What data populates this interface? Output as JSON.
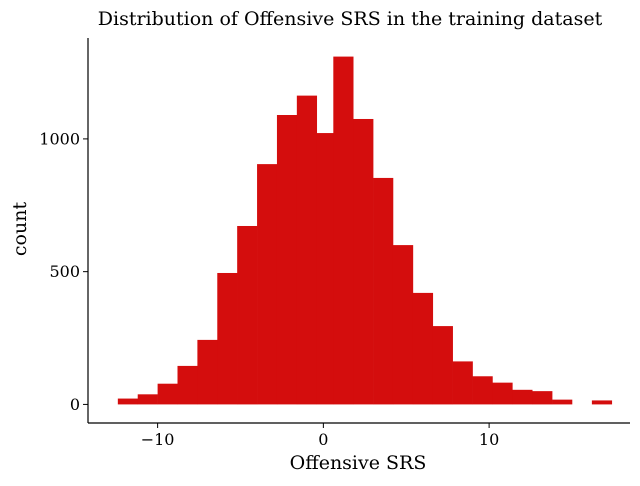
{
  "chart_data": {
    "type": "bar",
    "title": "Distribution of Offensive SRS in the training dataset",
    "xlabel": "Offensive SRS",
    "ylabel": "count",
    "xlim": [
      -14.2,
      18.5
    ],
    "ylim": [
      -70,
      1380
    ],
    "xticks": [
      -10,
      0,
      10
    ],
    "xtick_labels": [
      "−10",
      "0",
      "10"
    ],
    "yticks": [
      0,
      500,
      1000
    ],
    "ytick_labels": [
      "0",
      "500",
      "1000"
    ],
    "grid": false,
    "bar_color": "#d40d0d",
    "bins": [
      {
        "x0": -12.4,
        "x1": -11.2,
        "count": 22
      },
      {
        "x0": -11.2,
        "x1": -10.0,
        "count": 38
      },
      {
        "x0": -10.0,
        "x1": -8.8,
        "count": 78
      },
      {
        "x0": -8.8,
        "x1": -7.6,
        "count": 145
      },
      {
        "x0": -7.6,
        "x1": -6.4,
        "count": 243
      },
      {
        "x0": -6.4,
        "x1": -5.2,
        "count": 495
      },
      {
        "x0": -5.2,
        "x1": -4.0,
        "count": 672
      },
      {
        "x0": -4.0,
        "x1": -2.8,
        "count": 905
      },
      {
        "x0": -2.8,
        "x1": -1.6,
        "count": 1090
      },
      {
        "x0": -1.6,
        "x1": -0.4,
        "count": 1163
      },
      {
        "x0": -0.4,
        "x1": 0.6,
        "count": 1022
      },
      {
        "x0": 0.6,
        "x1": 1.8,
        "count": 1310
      },
      {
        "x0": 1.8,
        "x1": 3.0,
        "count": 1075
      },
      {
        "x0": 3.0,
        "x1": 4.2,
        "count": 853
      },
      {
        "x0": 4.2,
        "x1": 5.4,
        "count": 600
      },
      {
        "x0": 5.4,
        "x1": 6.6,
        "count": 420
      },
      {
        "x0": 6.6,
        "x1": 7.8,
        "count": 295
      },
      {
        "x0": 7.8,
        "x1": 9.0,
        "count": 162
      },
      {
        "x0": 9.0,
        "x1": 10.2,
        "count": 106
      },
      {
        "x0": 10.2,
        "x1": 11.4,
        "count": 82
      },
      {
        "x0": 11.4,
        "x1": 12.6,
        "count": 55
      },
      {
        "x0": 12.6,
        "x1": 13.8,
        "count": 50
      },
      {
        "x0": 13.8,
        "x1": 15.0,
        "count": 18
      },
      {
        "x0": 15.0,
        "x1": 16.2,
        "count": 0
      },
      {
        "x0": 16.2,
        "x1": 17.4,
        "count": 15
      }
    ]
  }
}
